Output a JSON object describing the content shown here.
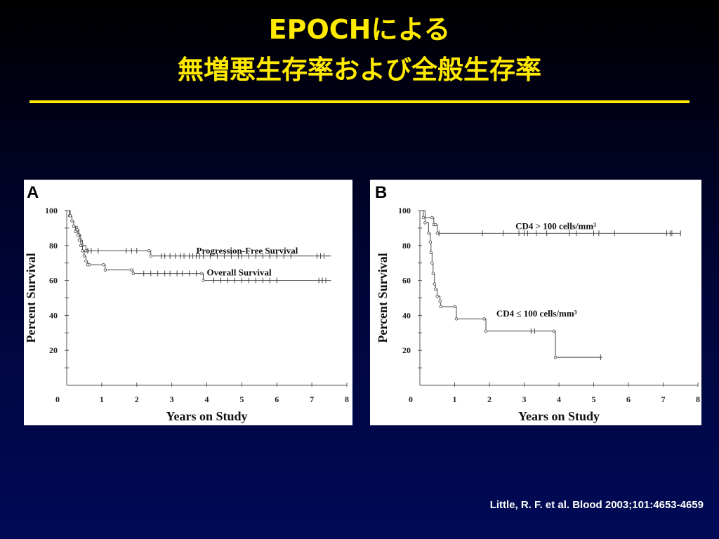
{
  "slide": {
    "title_line1": "EPOCHによる",
    "title_line2": "無増悪生存率および全般生存率",
    "citation": "Little, R. F. et al. Blood 2003;101:4653-4659",
    "title_color": "#ffea00"
  },
  "chart_data": [
    {
      "type": "line",
      "panel_label": "A",
      "xlabel": "Years on Study",
      "ylabel": "Percent Survival",
      "xlim": [
        0,
        8
      ],
      "ylim": [
        0,
        100
      ],
      "xticks": [
        "0",
        "1",
        "2",
        "3",
        "4",
        "5",
        "6",
        "7",
        "8"
      ],
      "yticks": [
        "20",
        "40",
        "60",
        "80",
        "100"
      ],
      "series": [
        {
          "name": "Progression-Free Survival",
          "points": [
            [
              0,
              100
            ],
            [
              0.08,
              97
            ],
            [
              0.15,
              94
            ],
            [
              0.2,
              91
            ],
            [
              0.3,
              89
            ],
            [
              0.35,
              86
            ],
            [
              0.4,
              83
            ],
            [
              0.45,
              80
            ],
            [
              0.55,
              77
            ],
            [
              0.6,
              77
            ],
            [
              2.35,
              77
            ],
            [
              2.4,
              74
            ],
            [
              7.55,
              74
            ]
          ],
          "censor": [
            0.6,
            0.7,
            0.9,
            1.7,
            1.85,
            2.0,
            2.7,
            2.8,
            2.95,
            3.1,
            3.25,
            3.35,
            3.5,
            3.6,
            3.7,
            3.8,
            3.9,
            4.1,
            4.3,
            4.5,
            4.7,
            4.9,
            5.0,
            5.2,
            5.4,
            5.6,
            5.8,
            6.0,
            6.2,
            6.4,
            7.15,
            7.25,
            7.35
          ],
          "label_x": 3.7,
          "label_y": 77
        },
        {
          "name": "Overall Survival",
          "points": [
            [
              0,
              100
            ],
            [
              0.1,
              97
            ],
            [
              0.15,
              94
            ],
            [
              0.2,
              91
            ],
            [
              0.25,
              88
            ],
            [
              0.32,
              86
            ],
            [
              0.36,
              83
            ],
            [
              0.4,
              80
            ],
            [
              0.45,
              77
            ],
            [
              0.5,
              74
            ],
            [
              0.55,
              71
            ],
            [
              0.6,
              69
            ],
            [
              0.65,
              69
            ],
            [
              1.05,
              69
            ],
            [
              1.1,
              66
            ],
            [
              1.85,
              66
            ],
            [
              1.9,
              64
            ],
            [
              3.85,
              64
            ],
            [
              3.9,
              60
            ],
            [
              7.55,
              60
            ]
          ],
          "censor": [
            2.2,
            2.4,
            2.6,
            2.8,
            2.95,
            3.15,
            3.3,
            3.5,
            3.7,
            4.2,
            4.4,
            4.6,
            4.8,
            5.0,
            5.2,
            5.4,
            5.6,
            5.8,
            6.0,
            7.2,
            7.3,
            7.4
          ],
          "label_x": 4.0,
          "label_y": 64.5
        }
      ]
    },
    {
      "type": "line",
      "panel_label": "B",
      "xlabel": "Years on Study",
      "ylabel": "Percent Survival",
      "xlim": [
        0,
        8
      ],
      "ylim": [
        0,
        100
      ],
      "xticks": [
        "0",
        "1",
        "2",
        "3",
        "4",
        "5",
        "6",
        "7",
        "8"
      ],
      "yticks": [
        "20",
        "40",
        "60",
        "80",
        "100"
      ],
      "series": [
        {
          "name": "CD4 > 100 cells/mm³",
          "points": [
            [
              0,
              100
            ],
            [
              0.1,
              96
            ],
            [
              0.35,
              96
            ],
            [
              0.4,
              92
            ],
            [
              0.45,
              92
            ],
            [
              0.5,
              87
            ],
            [
              7.5,
              87
            ]
          ],
          "censor": [
            0.55,
            1.8,
            2.4,
            2.85,
            3.0,
            3.1,
            3.35,
            3.65,
            4.3,
            4.5,
            5.0,
            5.15,
            5.6,
            7.1,
            7.2,
            7.25,
            7.5
          ],
          "label_x": 2.75,
          "label_y": 91
        },
        {
          "name": "CD4 ≤ 100 cells/mm³",
          "points": [
            [
              0,
              100
            ],
            [
              0.15,
              93
            ],
            [
              0.25,
              87
            ],
            [
              0.3,
              82
            ],
            [
              0.32,
              76
            ],
            [
              0.35,
              70
            ],
            [
              0.38,
              64
            ],
            [
              0.42,
              58
            ],
            [
              0.45,
              55
            ],
            [
              0.5,
              51
            ],
            [
              0.58,
              48
            ],
            [
              0.6,
              45
            ],
            [
              1.0,
              45
            ],
            [
              1.05,
              38
            ],
            [
              1.85,
              38
            ],
            [
              1.9,
              31
            ],
            [
              3.85,
              31
            ],
            [
              3.9,
              16
            ],
            [
              5.25,
              16
            ]
          ],
          "censor": [
            3.2,
            3.3,
            5.2
          ],
          "label_x": 2.2,
          "label_y": 41
        }
      ]
    }
  ]
}
